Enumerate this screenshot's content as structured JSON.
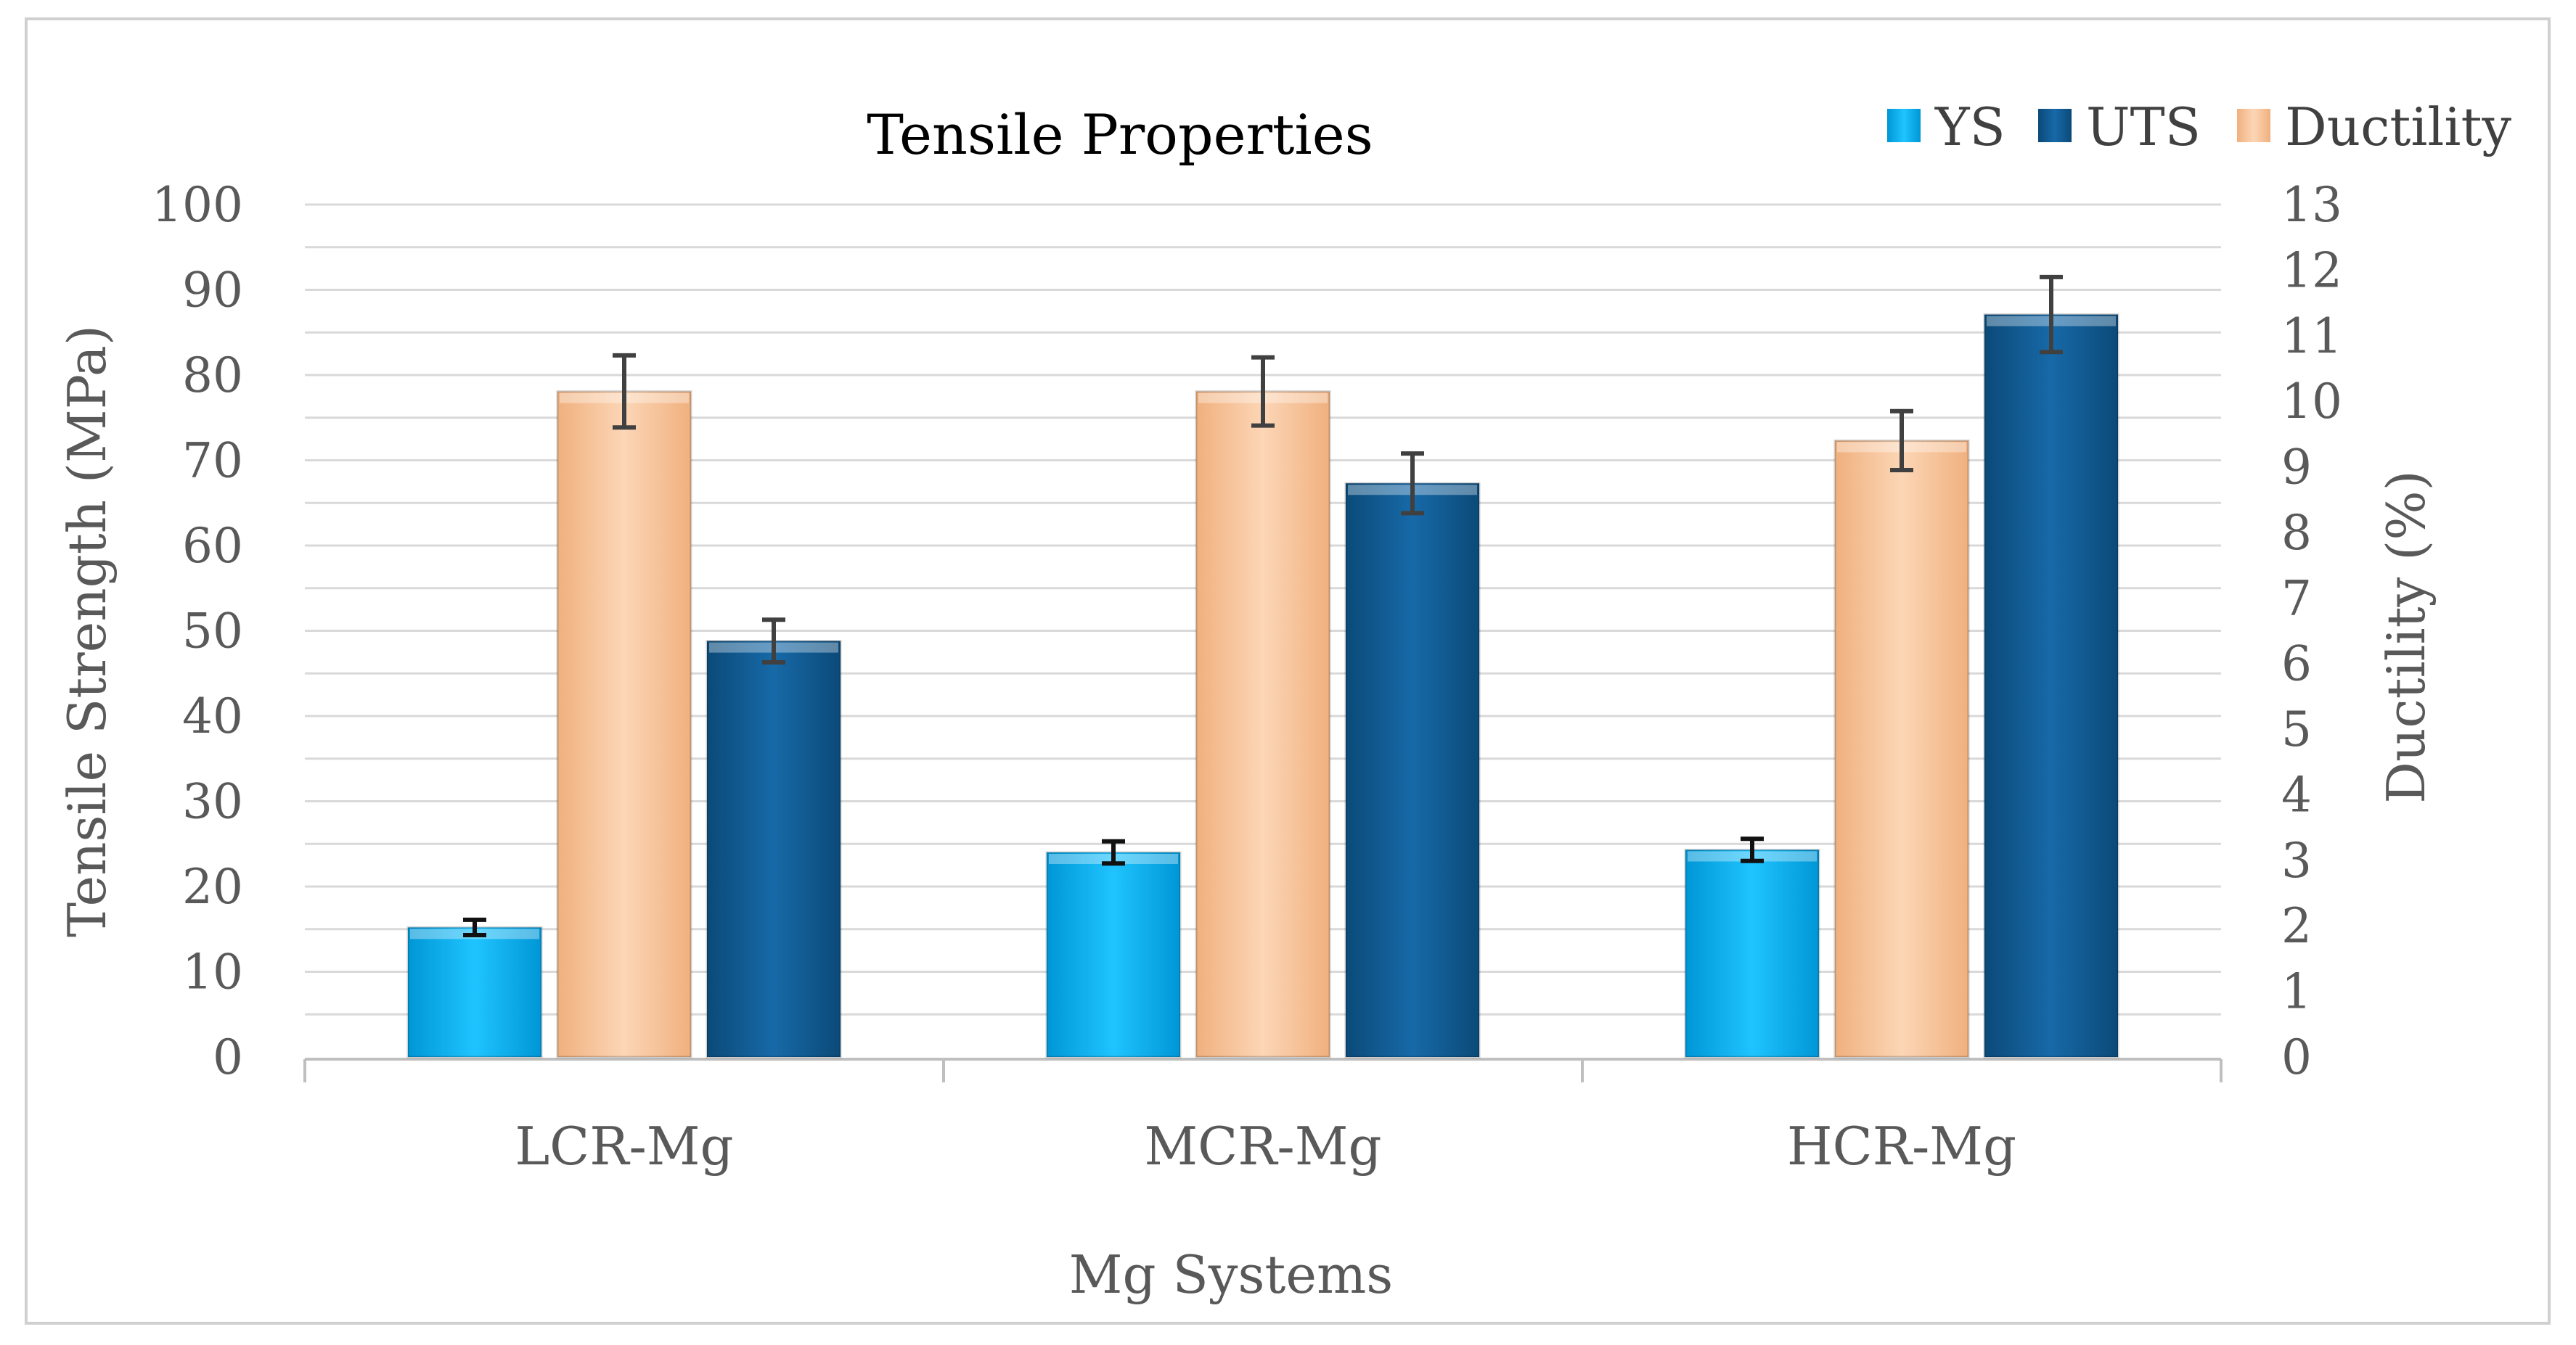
{
  "chart_data": {
    "type": "bar",
    "title": "Tensile Properties",
    "xlabel": "Mg Systems",
    "ylabel": "Tensile Strength (MPa)",
    "y2label": "Ductility (%)",
    "categories": [
      "LCR-Mg",
      "MCR-Mg",
      "HCR-Mg"
    ],
    "ylim": [
      0,
      100
    ],
    "y2lim": [
      0,
      13
    ],
    "yticks": [
      0,
      10,
      20,
      30,
      40,
      50,
      60,
      70,
      80,
      90,
      100
    ],
    "y2ticks": [
      0,
      1,
      2,
      3,
      4,
      5,
      6,
      7,
      8,
      9,
      10,
      11,
      12,
      13
    ],
    "grid": true,
    "legend_position": "top-right",
    "series": [
      {
        "name": "YS",
        "axis": "left",
        "color": "#00B0F0",
        "values": [
          15.2,
          24.0,
          24.3
        ],
        "errors": [
          0.9,
          1.3,
          1.3
        ]
      },
      {
        "name": "Ductility",
        "axis": "right",
        "color": "#F8CBAD",
        "values": [
          10.15,
          10.15,
          9.4
        ],
        "errors": [
          0.55,
          0.52,
          0.45
        ]
      },
      {
        "name": "UTS",
        "axis": "left",
        "color": "#0F5F98",
        "values": [
          48.8,
          67.3,
          87.1
        ],
        "errors": [
          2.5,
          3.5,
          4.4
        ]
      }
    ],
    "legend_order": [
      "YS",
      "UTS",
      "Ductility"
    ]
  }
}
